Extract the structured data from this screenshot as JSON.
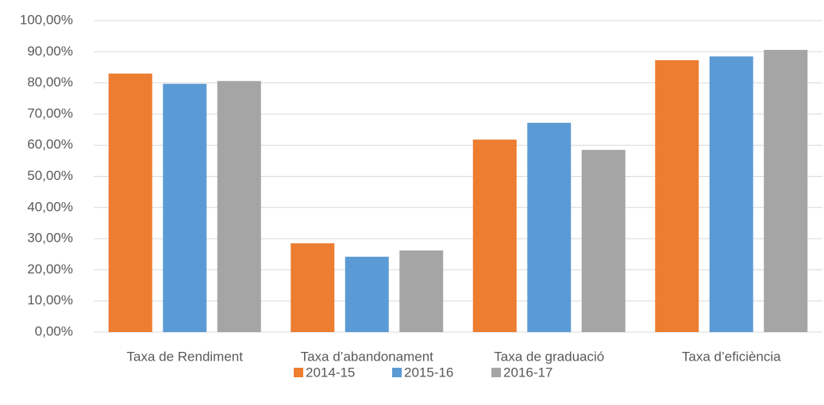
{
  "chart_data": {
    "type": "bar",
    "categories": [
      "Taxa de Rendiment",
      "Taxa d’abandonament",
      "Taxa de graduació",
      "Taxa d’eficiència"
    ],
    "series": [
      {
        "name": "2014-15",
        "color": "#ed7d31",
        "values": [
          83.0,
          28.5,
          61.8,
          87.3
        ]
      },
      {
        "name": "2015-16",
        "color": "#5b9bd5",
        "values": [
          79.7,
          24.2,
          67.2,
          88.5
        ]
      },
      {
        "name": "2016-17",
        "color": "#a5a5a5",
        "values": [
          80.6,
          26.2,
          58.5,
          90.6
        ]
      }
    ],
    "ylim": [
      0,
      100
    ],
    "yticks": [
      {
        "value": 0,
        "label": "0,00%"
      },
      {
        "value": 10,
        "label": "10,00%"
      },
      {
        "value": 20,
        "label": "20,00%"
      },
      {
        "value": 30,
        "label": "30,00%"
      },
      {
        "value": 40,
        "label": "40,00%"
      },
      {
        "value": 50,
        "label": "50,00%"
      },
      {
        "value": 60,
        "label": "60,00%"
      },
      {
        "value": 70,
        "label": "70,00%"
      },
      {
        "value": 80,
        "label": "80,00%"
      },
      {
        "value": 90,
        "label": "90,00%"
      },
      {
        "value": 100,
        "label": "100,00%"
      }
    ],
    "grid": true,
    "legend": "bottom"
  }
}
